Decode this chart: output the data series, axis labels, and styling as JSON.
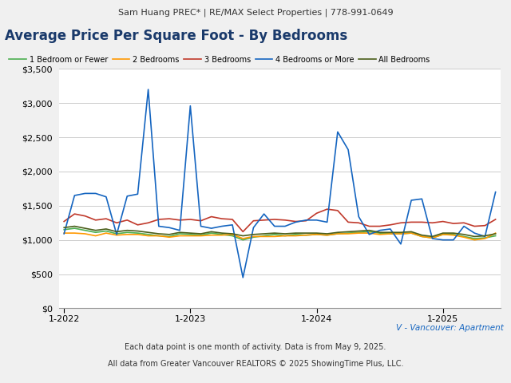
{
  "title": "Average Price Per Square Foot - By Bedrooms",
  "subtitle": "Sam Huang PREC* | RE/MAX Select Properties | 778-991-0649",
  "footer1": "V - Vancouver: Apartment",
  "footer2": "Each data point is one month of activity. Data is from May 9, 2025.",
  "footer3": "All data from Greater Vancouver REALTORS © 2025 ShowingTime Plus, LLC.",
  "background_color": "#f0f0f0",
  "plot_bg_color": "#ffffff",
  "title_color": "#1a3a6b",
  "ylim": [
    0,
    3500
  ],
  "yticks": [
    0,
    500,
    1000,
    1500,
    2000,
    2500,
    3000,
    3500
  ],
  "series": {
    "1 Bedroom or Fewer": {
      "color": "#4caf50",
      "values": [
        1150,
        1170,
        1140,
        1110,
        1130,
        1090,
        1110,
        1100,
        1080,
        1060,
        1050,
        1090,
        1080,
        1070,
        1100,
        1080,
        1060,
        1000,
        1040,
        1060,
        1080,
        1060,
        1080,
        1070,
        1080,
        1070,
        1090,
        1100,
        1110,
        1120,
        1100,
        1090,
        1090,
        1100,
        1050,
        1030,
        1080,
        1080,
        1050,
        1020,
        1030,
        1060
      ]
    },
    "2 Bedrooms": {
      "color": "#ff9800",
      "values": [
        1100,
        1100,
        1090,
        1060,
        1100,
        1070,
        1080,
        1080,
        1060,
        1060,
        1040,
        1060,
        1060,
        1060,
        1070,
        1070,
        1080,
        1020,
        1050,
        1050,
        1050,
        1060,
        1060,
        1070,
        1080,
        1070,
        1090,
        1090,
        1100,
        1100,
        1080,
        1090,
        1090,
        1100,
        1050,
        1030,
        1080,
        1070,
        1040,
        1000,
        1020,
        1100
      ]
    },
    "3 Bedrooms": {
      "color": "#c0392b",
      "values": [
        1270,
        1380,
        1350,
        1290,
        1310,
        1250,
        1290,
        1220,
        1250,
        1300,
        1310,
        1290,
        1300,
        1280,
        1340,
        1310,
        1300,
        1120,
        1280,
        1290,
        1300,
        1290,
        1270,
        1280,
        1390,
        1450,
        1430,
        1260,
        1250,
        1200,
        1200,
        1220,
        1250,
        1260,
        1260,
        1250,
        1270,
        1240,
        1250,
        1200,
        1210,
        1300
      ]
    },
    "4 Bedrooms or More": {
      "color": "#1565c0",
      "values": [
        1090,
        1650,
        1680,
        1680,
        1630,
        1080,
        1640,
        1670,
        3200,
        1200,
        1180,
        1140,
        2960,
        1200,
        1170,
        1200,
        1220,
        450,
        1180,
        1380,
        1200,
        1200,
        1260,
        1290,
        1290,
        1260,
        2580,
        2320,
        1340,
        1080,
        1140,
        1160,
        940,
        1580,
        1600,
        1020,
        1000,
        1000,
        1200,
        1100,
        1050,
        1700
      ]
    },
    "All Bedrooms": {
      "color": "#4a5e1a",
      "values": [
        1180,
        1200,
        1170,
        1140,
        1160,
        1120,
        1140,
        1130,
        1110,
        1090,
        1080,
        1110,
        1100,
        1090,
        1120,
        1100,
        1090,
        1060,
        1080,
        1090,
        1100,
        1090,
        1100,
        1100,
        1100,
        1090,
        1110,
        1120,
        1130,
        1140,
        1110,
        1110,
        1110,
        1120,
        1070,
        1050,
        1100,
        1100,
        1080,
        1050,
        1060,
        1090
      ]
    }
  },
  "series_order": [
    "1 Bedroom or Fewer",
    "2 Bedrooms",
    "3 Bedrooms",
    "4 Bedrooms or More",
    "All Bedrooms"
  ],
  "xtick_positions": [
    0,
    12,
    24,
    36
  ],
  "xtick_labels": [
    "1-2022",
    "1-2023",
    "1-2024",
    "1-2025"
  ],
  "n_months": 42
}
